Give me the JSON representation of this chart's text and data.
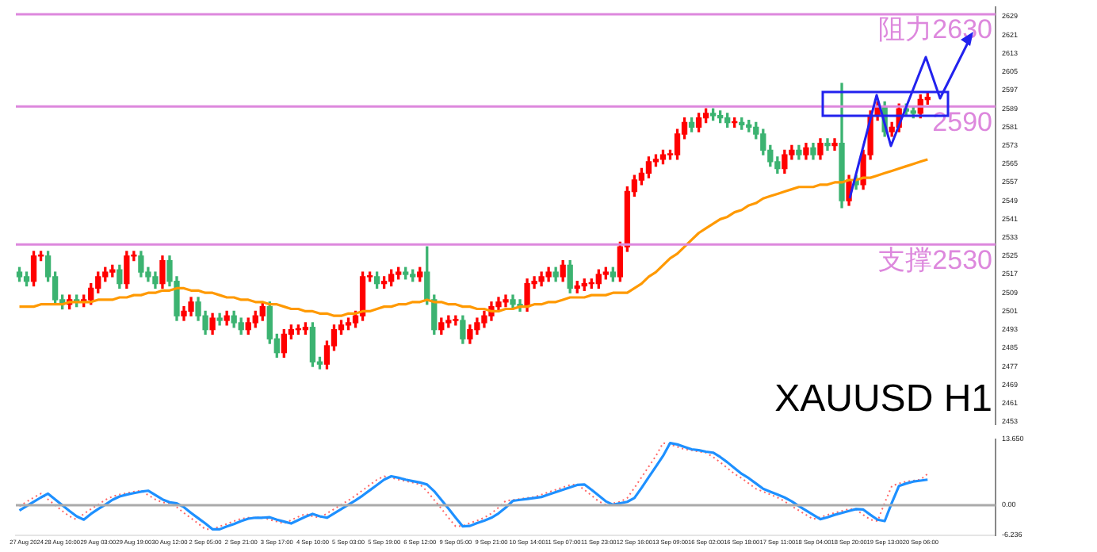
{
  "chart_data": [
    {
      "type": "candlestick",
      "grid": false,
      "legend": false,
      "tick_labels": "y",
      "categories": [
        null,
        null,
        null,
        null,
        null,
        null,
        null,
        null,
        null,
        null,
        null,
        null,
        null,
        null,
        null,
        null,
        null,
        null,
        null,
        null,
        null,
        null,
        null,
        null,
        null,
        null,
        null,
        null,
        null,
        null,
        null,
        null,
        null,
        null,
        null,
        null,
        null,
        null,
        null,
        null,
        null,
        null,
        null,
        null,
        null,
        null,
        null,
        null,
        null,
        null,
        null,
        null,
        null,
        null,
        null,
        null,
        null,
        null,
        null,
        null,
        null,
        null,
        null,
        null,
        null,
        null,
        null,
        null,
        null,
        null,
        null,
        null,
        null,
        null,
        null,
        null,
        null,
        null,
        null,
        null,
        null,
        null,
        null,
        null,
        null,
        null,
        null,
        null,
        null,
        null,
        null,
        null,
        null,
        null,
        null,
        null,
        null,
        null,
        null,
        null,
        null,
        null,
        null,
        null,
        null,
        null,
        null,
        null,
        null,
        null,
        null,
        null,
        null,
        null,
        null,
        null,
        null,
        null,
        null,
        null,
        null,
        null,
        null,
        null,
        null,
        null,
        null,
        null,
        null,
        null,
        null,
        null,
        null,
        null,
        null,
        null,
        null
      ],
      "ohlc": [
        [
          2518,
          2520,
          2514,
          2516
        ],
        [
          2516,
          2518,
          2512,
          2514
        ],
        [
          2514,
          2527,
          2512,
          2525
        ],
        [
          2525,
          2527,
          2523,
          2525
        ],
        [
          2525,
          2527,
          2514,
          2516
        ],
        [
          2516,
          2518,
          2504,
          2506
        ],
        [
          2506,
          2508,
          2502,
          2504
        ],
        [
          2504,
          2508,
          2502,
          2506
        ],
        [
          2506,
          2508,
          2503,
          2505
        ],
        [
          2505,
          2508,
          2503,
          2506
        ],
        [
          2506,
          2513,
          2504,
          2511
        ],
        [
          2511,
          2518,
          2509,
          2516
        ],
        [
          2516,
          2520,
          2514,
          2518
        ],
        [
          2518,
          2521,
          2516,
          2519
        ],
        [
          2519,
          2521,
          2511,
          2513
        ],
        [
          2513,
          2527,
          2511,
          2525
        ],
        [
          2525,
          2527,
          2523,
          2525
        ],
        [
          2525,
          2527,
          2516,
          2518
        ],
        [
          2518,
          2520,
          2514,
          2516
        ],
        [
          2516,
          2518,
          2511,
          2513
        ],
        [
          2513,
          2525,
          2511,
          2523
        ],
        [
          2523,
          2525,
          2512,
          2514
        ],
        [
          2514,
          2516,
          2497,
          2499
        ],
        [
          2499,
          2503,
          2497,
          2501
        ],
        [
          2501,
          2507,
          2499,
          2505
        ],
        [
          2505,
          2507,
          2497,
          2499
        ],
        [
          2499,
          2501,
          2491,
          2493
        ],
        [
          2493,
          2500,
          2491,
          2498
        ],
        [
          2498,
          2500,
          2495,
          2497
        ],
        [
          2497,
          2501,
          2495,
          2499
        ],
        [
          2499,
          2501,
          2494,
          2496
        ],
        [
          2496,
          2498,
          2491,
          2493
        ],
        [
          2493,
          2498,
          2491,
          2496
        ],
        [
          2496,
          2501,
          2494,
          2499
        ],
        [
          2499,
          2505,
          2497,
          2503
        ],
        [
          2503,
          2505,
          2487,
          2489
        ],
        [
          2489,
          2491,
          2481,
          2483
        ],
        [
          2483,
          2493,
          2481,
          2491
        ],
        [
          2491,
          2495,
          2489,
          2493
        ],
        [
          2493,
          2495,
          2491,
          2493
        ],
        [
          2493,
          2496,
          2491,
          2494
        ],
        [
          2494,
          2496,
          2477,
          2479
        ],
        [
          2479,
          2481,
          2476,
          2478
        ],
        [
          2478,
          2488,
          2476,
          2486
        ],
        [
          2486,
          2495,
          2484,
          2493
        ],
        [
          2493,
          2497,
          2491,
          2495
        ],
        [
          2495,
          2498,
          2493,
          2496
        ],
        [
          2496,
          2501,
          2494,
          2499
        ],
        [
          2499,
          2518,
          2497,
          2516
        ],
        [
          2516,
          2518,
          2514,
          2516
        ],
        [
          2516,
          2518,
          2511,
          2513
        ],
        [
          2513,
          2516,
          2511,
          2514
        ],
        [
          2514,
          2519,
          2512,
          2517
        ],
        [
          2517,
          2520,
          2515,
          2518
        ],
        [
          2518,
          2520,
          2515,
          2517
        ],
        [
          2517,
          2519,
          2514,
          2516
        ],
        [
          2516,
          2520,
          2514,
          2518
        ],
        [
          2518,
          2529,
          2504,
          2506
        ],
        [
          2506,
          2508,
          2491,
          2493
        ],
        [
          2493,
          2498,
          2491,
          2496
        ],
        [
          2496,
          2499,
          2494,
          2497
        ],
        [
          2497,
          2499,
          2495,
          2497
        ],
        [
          2497,
          2499,
          2487,
          2489
        ],
        [
          2489,
          2495,
          2487,
          2493
        ],
        [
          2493,
          2498,
          2491,
          2496
        ],
        [
          2496,
          2501,
          2494,
          2499
        ],
        [
          2499,
          2505,
          2497,
          2503
        ],
        [
          2503,
          2507,
          2501,
          2505
        ],
        [
          2505,
          2508,
          2503,
          2506
        ],
        [
          2506,
          2508,
          2502,
          2504
        ],
        [
          2504,
          2506,
          2501,
          2503
        ],
        [
          2503,
          2515,
          2501,
          2513
        ],
        [
          2513,
          2516,
          2511,
          2514
        ],
        [
          2514,
          2518,
          2512,
          2516
        ],
        [
          2516,
          2520,
          2514,
          2518
        ],
        [
          2518,
          2520,
          2514,
          2516
        ],
        [
          2516,
          2523,
          2514,
          2521
        ],
        [
          2521,
          2523,
          2509,
          2511
        ],
        [
          2511,
          2514,
          2509,
          2512
        ],
        [
          2512,
          2515,
          2510,
          2513
        ],
        [
          2513,
          2515,
          2511,
          2513
        ],
        [
          2513,
          2519,
          2511,
          2517
        ],
        [
          2517,
          2520,
          2515,
          2518
        ],
        [
          2518,
          2520,
          2514,
          2516
        ],
        [
          2516,
          2531,
          2514,
          2529
        ],
        [
          2529,
          2555,
          2527,
          2553
        ],
        [
          2553,
          2560,
          2551,
          2558
        ],
        [
          2558,
          2563,
          2556,
          2561
        ],
        [
          2561,
          2568,
          2559,
          2566
        ],
        [
          2566,
          2569,
          2564,
          2567
        ],
        [
          2567,
          2571,
          2565,
          2569
        ],
        [
          2569,
          2571,
          2567,
          2569
        ],
        [
          2569,
          2580,
          2567,
          2578
        ],
        [
          2578,
          2585,
          2576,
          2583
        ],
        [
          2583,
          2585,
          2579,
          2581
        ],
        [
          2581,
          2587,
          2579,
          2585
        ],
        [
          2585,
          2589,
          2583,
          2587
        ],
        [
          2587,
          2589,
          2584,
          2586
        ],
        [
          2586,
          2588,
          2583,
          2585
        ],
        [
          2585,
          2587,
          2581,
          2583
        ],
        [
          2583,
          2585,
          2581,
          2583
        ],
        [
          2583,
          2585,
          2580,
          2582
        ],
        [
          2582,
          2584,
          2579,
          2581
        ],
        [
          2581,
          2583,
          2576,
          2578
        ],
        [
          2578,
          2580,
          2569,
          2571
        ],
        [
          2571,
          2573,
          2564,
          2566
        ],
        [
          2566,
          2568,
          2561,
          2563
        ],
        [
          2563,
          2571,
          2561,
          2569
        ],
        [
          2569,
          2573,
          2567,
          2571
        ],
        [
          2571,
          2573,
          2567,
          2569
        ],
        [
          2569,
          2574,
          2567,
          2572
        ],
        [
          2572,
          2574,
          2567,
          2569
        ],
        [
          2569,
          2576,
          2567,
          2574
        ],
        [
          2574,
          2576,
          2571,
          2573
        ],
        [
          2573,
          2576,
          2571,
          2574
        ],
        [
          2574,
          2600,
          2546,
          2549
        ],
        [
          2549,
          2560,
          2547,
          2558
        ],
        [
          2558,
          2560,
          2554,
          2556
        ],
        [
          2556,
          2571,
          2554,
          2569
        ],
        [
          2569,
          2588,
          2567,
          2586
        ],
        [
          2586,
          2592,
          2584,
          2590
        ],
        [
          2590,
          2592,
          2577,
          2579
        ],
        [
          2579,
          2583,
          2577,
          2581
        ],
        [
          2581,
          2591,
          2579,
          2589
        ],
        [
          2589,
          2591,
          2586,
          2588
        ],
        [
          2588,
          2590,
          2585,
          2587
        ],
        [
          2587,
          2595,
          2585,
          2593
        ],
        [
          2593,
          2596,
          2591,
          2594
        ],
        null,
        null,
        null,
        null,
        null,
        null,
        null,
        null,
        null
      ],
      "series": [
        {
          "type": "line",
          "color": "#ff9900",
          "values": [
            2503,
            2503,
            2503,
            2504,
            2504,
            2504,
            2504,
            2505,
            2505,
            2505,
            2505,
            2506,
            2506,
            2506,
            2507,
            2507,
            2508,
            2508,
            2509,
            2509,
            2510,
            2510,
            2511,
            2511,
            2510,
            2510,
            2509,
            2509,
            2508,
            2507,
            2507,
            2506,
            2506,
            2505,
            2505,
            2504,
            2504,
            2503,
            2502,
            2502,
            2501,
            2501,
            2500,
            2500,
            2499,
            2499,
            2500,
            2500,
            2501,
            2501,
            2502,
            2503,
            2503,
            2504,
            2504,
            2505,
            2505,
            2506,
            2505,
            2505,
            2504,
            2504,
            2503,
            2503,
            2502,
            2502,
            2501,
            2501,
            2502,
            2502,
            2503,
            2503,
            2504,
            2504,
            2505,
            2505,
            2506,
            2507,
            2507,
            2507,
            2508,
            2508,
            2508,
            2509,
            2509,
            2509,
            2511,
            2513,
            2516,
            2518,
            2521,
            2524,
            2526,
            2529,
            2532,
            2535,
            2537,
            2539,
            2541,
            2542,
            2544,
            2545,
            2547,
            2548,
            2550,
            2551,
            2552,
            2553,
            2554,
            2555,
            2555,
            2555,
            2556,
            2556,
            2557,
            2557,
            2558,
            2558,
            2559,
            2559,
            2560,
            2561,
            2562,
            2563,
            2564,
            2565,
            2566,
            2567,
            null,
            null,
            null,
            null,
            null,
            null,
            null,
            null,
            null
          ]
        }
      ],
      "ylim": [
        2452,
        2633
      ],
      "yticks": [
        2453,
        2461,
        2469,
        2477,
        2485,
        2493,
        2501,
        2509,
        2517,
        2525,
        2533,
        2541,
        2549,
        2557,
        2565,
        2573,
        2581,
        2589,
        2597,
        2605,
        2613,
        2621,
        2629
      ],
      "ref_lines": [
        {
          "axis": "y",
          "value": 2630,
          "label": "阻力2630",
          "color": "#dd88dd"
        },
        {
          "axis": "y",
          "value": 2590,
          "label": "2590",
          "color": "#dd88dd"
        },
        {
          "axis": "y",
          "value": 2530,
          "label": "支撑2530",
          "color": "#dd88dd"
        }
      ],
      "annotations": [
        "XAUUSD H1"
      ]
    },
    {
      "type": "line",
      "grid": false,
      "legend": false,
      "categories": [
        null,
        "27 Aug 2024",
        null,
        null,
        null,
        null,
        "28 Aug 10:00",
        null,
        null,
        null,
        null,
        "29 Aug 03:00",
        null,
        null,
        null,
        null,
        "29 Aug 19:00",
        null,
        null,
        null,
        null,
        "30 Aug 12:00",
        null,
        null,
        null,
        null,
        "2 Sep 05:00",
        null,
        null,
        null,
        null,
        "2 Sep 21:00",
        null,
        null,
        null,
        null,
        "3 Sep 17:00",
        null,
        null,
        null,
        null,
        "4 Sep 10:00",
        null,
        null,
        null,
        null,
        "5 Sep 03:00",
        null,
        null,
        null,
        null,
        "5 Sep 19:00",
        null,
        null,
        null,
        null,
        "6 Sep 12:00",
        null,
        null,
        null,
        null,
        "9 Sep 05:00",
        null,
        null,
        null,
        null,
        "9 Sep 21:00",
        null,
        null,
        null,
        null,
        "10 Sep 14:00",
        null,
        null,
        null,
        null,
        "11 Sep 07:00",
        null,
        null,
        null,
        null,
        "11 Sep 23:00",
        null,
        null,
        null,
        null,
        "12 Sep 16:00",
        null,
        null,
        null,
        null,
        "13 Sep 09:00",
        null,
        null,
        null,
        null,
        "16 Sep 02:00",
        null,
        null,
        null,
        null,
        "16 Sep 18:00",
        null,
        null,
        null,
        null,
        "17 Sep 11:00",
        null,
        null,
        null,
        null,
        "18 Sep 04:00",
        null,
        null,
        null,
        null,
        "18 Sep 20:00",
        null,
        null,
        null,
        null,
        "19 Sep 13:00",
        null,
        null,
        null,
        null,
        "20 Sep 06:00",
        null,
        null,
        null,
        null,
        null,
        null,
        null,
        null,
        null,
        null
      ],
      "series": [
        {
          "color": "#1e90ff",
          "line_style": "solid",
          "values": [
            -1.1,
            -0.2,
            0.7,
            1.6,
            2.4,
            1.2,
            0,
            -1.2,
            -2.3,
            -3.0,
            -1.8,
            -0.8,
            0.1,
            1.1,
            1.8,
            2.2,
            2.5,
            2.8,
            3.0,
            2.1,
            1.2,
            0.6,
            0.4,
            -0.4,
            -1.6,
            -2.7,
            -3.8,
            -5.0,
            -5.0,
            -4.4,
            -3.9,
            -3.3,
            -2.8,
            -2.6,
            -2.6,
            -2.5,
            -3.0,
            -3.4,
            -3.8,
            -3.1,
            -2.4,
            -1.8,
            -2.3,
            -2.6,
            -1.7,
            -0.8,
            0.1,
            1.0,
            2.0,
            3.1,
            4.2,
            5.3,
            6.0,
            5.7,
            5.3,
            5.0,
            4.7,
            4.3,
            2.9,
            1.1,
            -0.7,
            -2.6,
            -4.4,
            -4.3,
            -3.7,
            -3.2,
            -2.6,
            -1.7,
            -0.5,
            0.9,
            1.1,
            1.3,
            1.5,
            1.7,
            2.2,
            2.7,
            3.2,
            3.7,
            4.2,
            4.3,
            3.2,
            2.0,
            0.8,
            0.1,
            0.4,
            0.7,
            1.5,
            3.6,
            5.8,
            8.0,
            10.2,
            12.9,
            12.6,
            12.1,
            11.6,
            11.4,
            11.1,
            10.9,
            10.0,
            8.9,
            7.7,
            6.5,
            5.6,
            4.5,
            3.4,
            2.8,
            2.2,
            1.6,
            0.8,
            -0.2,
            -1.1,
            -2.0,
            -2.9,
            -2.5,
            -2.0,
            -1.6,
            -1.2,
            -0.8,
            -0.9,
            -2.0,
            -3.0,
            -3.3,
            0.5,
            4.0,
            4.5,
            4.9,
            5.1,
            5.3,
            null,
            null,
            null,
            null,
            null,
            null,
            null,
            null,
            null
          ]
        },
        {
          "color": "#ff6666",
          "line_style": "dotted",
          "values": [
            -0.2,
            0.7,
            1.6,
            2.4,
            1.2,
            0,
            -1.2,
            -2.3,
            -3.0,
            -1.8,
            -0.8,
            0.1,
            1.1,
            1.8,
            2.2,
            2.5,
            2.8,
            3.0,
            2.1,
            1.2,
            0.6,
            0.4,
            -0.4,
            -1.6,
            -2.7,
            -3.8,
            -5.0,
            -5.0,
            -4.4,
            -3.9,
            -3.3,
            -2.8,
            -2.6,
            -2.6,
            -2.5,
            -3.0,
            -3.4,
            -3.8,
            -3.1,
            -2.4,
            -1.8,
            -2.3,
            -2.6,
            -1.7,
            -0.8,
            0.1,
            1.0,
            2.0,
            3.1,
            4.2,
            5.3,
            6.0,
            5.7,
            5.3,
            5.0,
            4.7,
            4.3,
            2.9,
            1.1,
            -0.7,
            -2.6,
            -4.4,
            -4.3,
            -3.7,
            -3.2,
            -2.6,
            -1.7,
            -0.5,
            0.9,
            1.1,
            1.3,
            1.5,
            1.7,
            2.2,
            2.7,
            3.2,
            3.7,
            4.2,
            4.3,
            3.2,
            2.0,
            0.8,
            0.1,
            0.4,
            0.7,
            1.5,
            3.6,
            5.8,
            8.0,
            10.2,
            12.9,
            12.6,
            12.1,
            11.6,
            11.4,
            11.1,
            10.9,
            10.0,
            8.9,
            7.7,
            6.5,
            5.6,
            4.5,
            3.4,
            2.8,
            2.2,
            1.6,
            0.8,
            -0.2,
            -1.1,
            -2.0,
            -2.9,
            -2.5,
            -2.0,
            -1.6,
            -1.2,
            -0.8,
            -0.9,
            -2.0,
            -3.0,
            -3.3,
            0.5,
            4.0,
            4.5,
            4.9,
            5.1,
            5.3,
            6.5,
            null,
            null,
            null,
            null,
            null,
            null,
            null,
            null,
            null
          ]
        }
      ],
      "ylim": [
        -6.236,
        13.65
      ],
      "yticks": [
        {
          "value": 13.65,
          "label": "13.650"
        },
        {
          "value": 0,
          "label": "0.00"
        },
        {
          "value": -6.236,
          "label": "-6.236"
        }
      ],
      "ref_lines": [
        {
          "axis": "y",
          "value": 0,
          "color": "#aaaaaa"
        }
      ]
    }
  ]
}
